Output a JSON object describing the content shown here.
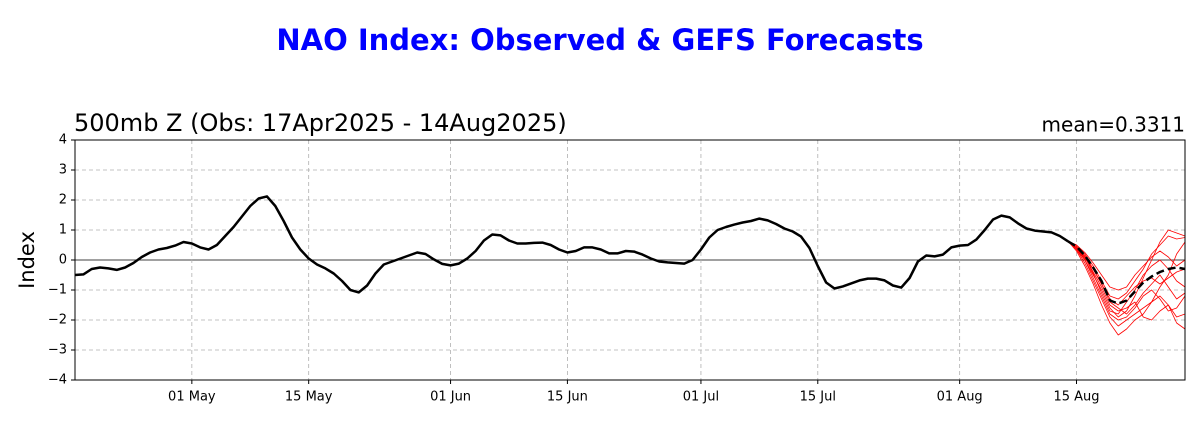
{
  "chart_data": {
    "type": "line",
    "title": "NAO Index: Observed & GEFS Forecasts",
    "subtitle": "500mb Z (Obs: 17Apr2025 - 14Aug2025)",
    "annotation": "mean=0.3311",
    "ylabel": "Index",
    "xlim": [
      "2025-04-17",
      "2025-08-28"
    ],
    "xticks": [
      {
        "value": "2025-05-01",
        "label": "01 May"
      },
      {
        "value": "2025-05-15",
        "label": "15 May"
      },
      {
        "value": "2025-06-01",
        "label": "01 Jun"
      },
      {
        "value": "2025-06-15",
        "label": "15 Jun"
      },
      {
        "value": "2025-07-01",
        "label": "01 Jul"
      },
      {
        "value": "2025-07-15",
        "label": "15 Jul"
      },
      {
        "value": "2025-08-01",
        "label": "01 Aug"
      },
      {
        "value": "2025-08-15",
        "label": "15 Aug"
      }
    ],
    "ylim": [
      -4,
      4
    ],
    "yticks": [
      {
        "value": -4,
        "label": "−4"
      },
      {
        "value": -3,
        "label": "−3"
      },
      {
        "value": -2,
        "label": "−2"
      },
      {
        "value": -1,
        "label": "−1"
      },
      0,
      1,
      2,
      3,
      4
    ],
    "grid": true,
    "observed": {
      "color": "#000000",
      "x": [
        "2025-04-17",
        "2025-04-18",
        "2025-04-19",
        "2025-04-20",
        "2025-04-21",
        "2025-04-22",
        "2025-04-23",
        "2025-04-24",
        "2025-04-25",
        "2025-04-26",
        "2025-04-27",
        "2025-04-28",
        "2025-04-29",
        "2025-04-30",
        "2025-05-01",
        "2025-05-02",
        "2025-05-03",
        "2025-05-04",
        "2025-05-05",
        "2025-05-06",
        "2025-05-07",
        "2025-05-08",
        "2025-05-09",
        "2025-05-10",
        "2025-05-11",
        "2025-05-12",
        "2025-05-13",
        "2025-05-14",
        "2025-05-15",
        "2025-05-16",
        "2025-05-17",
        "2025-05-18",
        "2025-05-19",
        "2025-05-20",
        "2025-05-21",
        "2025-05-22",
        "2025-05-23",
        "2025-05-24",
        "2025-05-25",
        "2025-05-26",
        "2025-05-27",
        "2025-05-28",
        "2025-05-29",
        "2025-05-30",
        "2025-05-31",
        "2025-06-01",
        "2025-06-02",
        "2025-06-03",
        "2025-06-04",
        "2025-06-05",
        "2025-06-06",
        "2025-06-07",
        "2025-06-08",
        "2025-06-09",
        "2025-06-10",
        "2025-06-11",
        "2025-06-12",
        "2025-06-13",
        "2025-06-14",
        "2025-06-15",
        "2025-06-16",
        "2025-06-17",
        "2025-06-18",
        "2025-06-19",
        "2025-06-20",
        "2025-06-21",
        "2025-06-22",
        "2025-06-23",
        "2025-06-24",
        "2025-06-25",
        "2025-06-26",
        "2025-06-27",
        "2025-06-28",
        "2025-06-29",
        "2025-06-30",
        "2025-07-01",
        "2025-07-02",
        "2025-07-03",
        "2025-07-04",
        "2025-07-05",
        "2025-07-06",
        "2025-07-07",
        "2025-07-08",
        "2025-07-09",
        "2025-07-10",
        "2025-07-11",
        "2025-07-12",
        "2025-07-13",
        "2025-07-14",
        "2025-07-15",
        "2025-07-16",
        "2025-07-17",
        "2025-07-18",
        "2025-07-19",
        "2025-07-20",
        "2025-07-21",
        "2025-07-22",
        "2025-07-23",
        "2025-07-24",
        "2025-07-25",
        "2025-07-26",
        "2025-07-27",
        "2025-07-28",
        "2025-07-29",
        "2025-07-30",
        "2025-07-31",
        "2025-08-01",
        "2025-08-02",
        "2025-08-03",
        "2025-08-04",
        "2025-08-05",
        "2025-08-06",
        "2025-08-07",
        "2025-08-08",
        "2025-08-09",
        "2025-08-10",
        "2025-08-11",
        "2025-08-12",
        "2025-08-13",
        "2025-08-14"
      ],
      "values": [
        -0.5,
        -0.48,
        -0.3,
        -0.25,
        -0.28,
        -0.33,
        -0.25,
        -0.1,
        0.1,
        0.25,
        0.35,
        0.4,
        0.48,
        0.6,
        0.55,
        0.42,
        0.35,
        0.5,
        0.8,
        1.1,
        1.45,
        1.8,
        2.05,
        2.12,
        1.8,
        1.3,
        0.75,
        0.35,
        0.05,
        -0.15,
        -0.28,
        -0.45,
        -0.7,
        -1.0,
        -1.08,
        -0.85,
        -0.45,
        -0.15,
        -0.05,
        0.05,
        0.15,
        0.25,
        0.2,
        0.02,
        -0.13,
        -0.18,
        -0.12,
        0.05,
        0.3,
        0.65,
        0.85,
        0.82,
        0.65,
        0.55,
        0.55,
        0.57,
        0.58,
        0.5,
        0.35,
        0.25,
        0.3,
        0.42,
        0.42,
        0.35,
        0.22,
        0.22,
        0.3,
        0.28,
        0.18,
        0.05,
        -0.05,
        -0.08,
        -0.1,
        -0.12,
        0.0,
        0.35,
        0.75,
        1.0,
        1.1,
        1.18,
        1.25,
        1.3,
        1.38,
        1.32,
        1.2,
        1.05,
        0.95,
        0.78,
        0.4,
        -0.2,
        -0.75,
        -0.95,
        -0.88,
        -0.78,
        -0.68,
        -0.62,
        -0.62,
        -0.68,
        -0.85,
        -0.92,
        -0.6,
        -0.05,
        0.15,
        0.12,
        0.18,
        0.42,
        0.48,
        0.5,
        0.68,
        1.0,
        1.35,
        1.48,
        1.42,
        1.22,
        1.05,
        0.98,
        0.95,
        0.92,
        0.8,
        0.62
      ]
    },
    "forecast": {
      "x": [
        "2025-08-14",
        "2025-08-15",
        "2025-08-16",
        "2025-08-17",
        "2025-08-18",
        "2025-08-19",
        "2025-08-20",
        "2025-08-21",
        "2025-08-22",
        "2025-08-23",
        "2025-08-24",
        "2025-08-25",
        "2025-08-26",
        "2025-08-27",
        "2025-08-28"
      ],
      "member_color": "#ff0000",
      "members": [
        {
          "values": [
            0.62,
            0.4,
            0.0,
            -0.5,
            -1.0,
            -1.6,
            -1.9,
            -1.7,
            -1.2,
            -0.6,
            0.0,
            0.6,
            1.0,
            0.9,
            0.8
          ]
        },
        {
          "values": [
            0.62,
            0.5,
            0.2,
            -0.2,
            -0.7,
            -1.2,
            -1.3,
            -1.1,
            -0.7,
            -0.3,
            0.2,
            0.5,
            0.8,
            0.7,
            0.75
          ]
        },
        {
          "values": [
            0.62,
            0.35,
            -0.1,
            -0.7,
            -1.3,
            -1.9,
            -2.2,
            -2.0,
            -1.8,
            -1.6,
            -1.4,
            -1.2,
            -1.5,
            -1.9,
            -1.8
          ]
        },
        {
          "values": [
            0.62,
            0.45,
            0.1,
            -0.4,
            -0.9,
            -1.5,
            -1.7,
            -1.6,
            -1.4,
            -1.9,
            -2.0,
            -1.7,
            -1.5,
            -2.1,
            -2.3
          ]
        },
        {
          "values": [
            0.62,
            0.4,
            0.05,
            -0.3,
            -0.8,
            -1.3,
            -1.5,
            -1.2,
            -0.9,
            -0.7,
            -0.6,
            -0.8,
            -0.6,
            -0.4,
            -0.3
          ]
        },
        {
          "values": [
            0.62,
            0.5,
            0.25,
            -0.1,
            -0.5,
            -0.9,
            -1.0,
            -0.9,
            -0.5,
            -0.2,
            0.1,
            0.3,
            0.1,
            -0.2,
            0.0
          ]
        },
        {
          "values": [
            0.62,
            0.3,
            -0.2,
            -0.8,
            -1.5,
            -2.1,
            -2.5,
            -2.3,
            -2.0,
            -1.8,
            -1.4,
            -0.9,
            -0.5,
            0.2,
            0.6
          ]
        },
        {
          "values": [
            0.62,
            0.45,
            0.15,
            -0.3,
            -0.8,
            -1.4,
            -1.6,
            -1.8,
            -1.5,
            -1.1,
            -0.8,
            -0.5,
            -0.9,
            -1.3,
            -1.1
          ]
        },
        {
          "values": [
            0.62,
            0.4,
            0.1,
            -0.45,
            -1.1,
            -1.7,
            -1.8,
            -1.4,
            -1.0,
            -0.5,
            -0.2,
            0.0,
            -0.3,
            -0.7,
            -0.9
          ]
        },
        {
          "values": [
            0.62,
            0.35,
            0.0,
            -0.6,
            -1.2,
            -1.8,
            -2.0,
            -1.9,
            -1.6,
            -1.2,
            -1.0,
            -1.3,
            -1.7,
            -1.6,
            -1.2
          ]
        }
      ],
      "mean": {
        "color": "#000000",
        "values": [
          0.62,
          0.45,
          0.15,
          -0.25,
          -0.7,
          -1.35,
          -1.45,
          -1.35,
          -1.05,
          -0.75,
          -0.55,
          -0.4,
          -0.3,
          -0.25,
          -0.3
        ]
      }
    }
  }
}
